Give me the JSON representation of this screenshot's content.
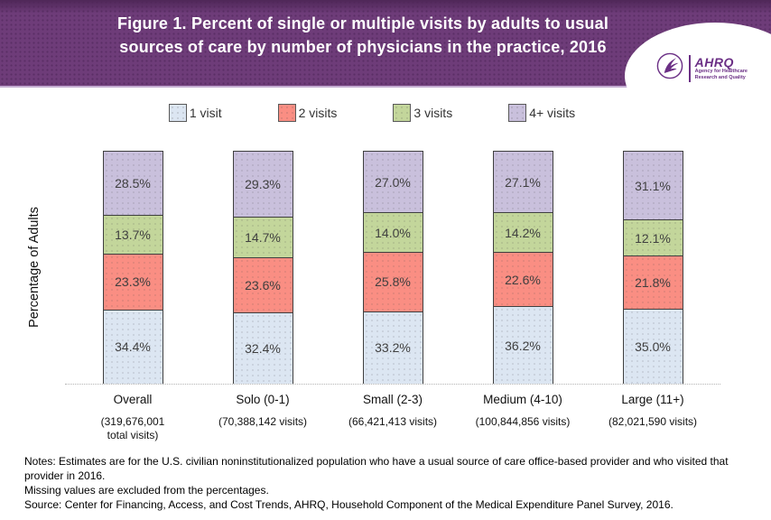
{
  "header": {
    "title_line1": "Figure 1. Percent of single or multiple visits by adults to usual",
    "title_line2": "sources of care by number of physicians in the practice, 2016",
    "logo": {
      "abbr": "AHRQ",
      "tagline_line1": "Agency for Healthcare",
      "tagline_line2": "Research and Quality"
    }
  },
  "colors": {
    "header_bg": "#6e3c79",
    "header_underline": "#c3abd1",
    "logo_purple": "#6b2f85",
    "segment_border": "#3f3f3f",
    "value_label_text": "#3f3f3f",
    "axis_dotted": "#b3b3b3"
  },
  "chart_data": {
    "type": "bar",
    "stacked": true,
    "title": "Figure 1. Percent of single or multiple visits by adults to usual sources of care by number of physicians in the practice, 2016",
    "categories": [
      "Overall",
      "Solo (0-1)",
      "Small (2-3)",
      "Medium (4-10)",
      "Large (11+)"
    ],
    "category_sublabels": [
      [
        "(319,676,001",
        "total visits)"
      ],
      [
        "(70,388,142 visits)"
      ],
      [
        "(66,421,413 visits)"
      ],
      [
        "(100,844,856 visits)"
      ],
      [
        "(82,021,590 visits)"
      ]
    ],
    "series": [
      {
        "name": "1 visit",
        "color": "#dce6f2",
        "values": [
          34.4,
          32.4,
          33.2,
          36.2,
          35.0
        ]
      },
      {
        "name": "2 visits",
        "color": "#fa8e83",
        "values": [
          23.3,
          23.6,
          25.8,
          22.6,
          21.8
        ]
      },
      {
        "name": "3 visits",
        "color": "#c3d69b",
        "values": [
          13.7,
          14.7,
          14.0,
          14.2,
          12.1
        ]
      },
      {
        "name": "4+ visits",
        "color": "#c9c0dc",
        "values": [
          28.5,
          29.3,
          27.0,
          27.1,
          31.1
        ]
      }
    ],
    "stack_order_bottom_to_top": [
      "1 visit",
      "2 visits",
      "3 visits",
      "4+ visits"
    ],
    "xlabel": "",
    "ylabel": "Percentage of Adults",
    "value_suffix": "%",
    "ylim": [
      0,
      100
    ],
    "legend_position": "top",
    "grid": false
  },
  "notes": {
    "note1": "Notes: Estimates are for the U.S. civilian noninstitutionalized population who have a usual source of care office-based provider and who visited that provider in 2016.",
    "note2": "Missing values are excluded from the percentages.",
    "note3": "Source: Center for Financing, Access, and Cost Trends, AHRQ, Household Component of the Medical Expenditure Panel Survey, 2016."
  }
}
